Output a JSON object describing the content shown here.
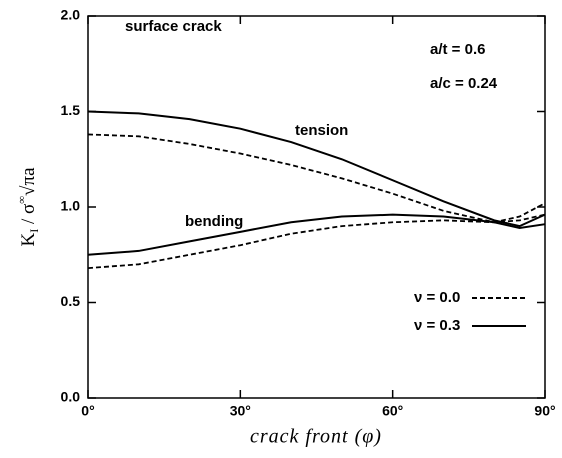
{
  "chart_data": {
    "type": "line",
    "xlabel": "crack front  (φ)",
    "ylabel": {
      "main": "K",
      "sub": "I",
      "rest": " / σ",
      "sup": "∞",
      "root": "√πa"
    },
    "x": [
      0,
      10,
      20,
      30,
      40,
      50,
      60,
      70,
      80,
      85,
      90
    ],
    "series": [
      {
        "legend": 0,
        "annotation": 3,
        "dash": "5 3",
        "color": "#000000",
        "values": [
          1.38,
          1.37,
          1.33,
          1.28,
          1.22,
          1.15,
          1.07,
          0.98,
          0.92,
          0.95,
          1.02
        ]
      },
      {
        "legend": 1,
        "annotation": 3,
        "dash": "none",
        "color": "#000000",
        "values": [
          1.5,
          1.49,
          1.46,
          1.41,
          1.34,
          1.25,
          1.14,
          1.03,
          0.93,
          0.9,
          0.96
        ]
      },
      {
        "legend": 0,
        "annotation": 4,
        "dash": "5 3",
        "color": "#000000",
        "values": [
          0.68,
          0.7,
          0.75,
          0.8,
          0.86,
          0.9,
          0.92,
          0.93,
          0.92,
          0.93,
          0.96
        ]
      },
      {
        "legend": 1,
        "annotation": 4,
        "dash": "none",
        "color": "#000000",
        "values": [
          0.75,
          0.77,
          0.82,
          0.87,
          0.92,
          0.95,
          0.96,
          0.95,
          0.92,
          0.89,
          0.91
        ]
      }
    ],
    "legend": [
      {
        "name": "ν = 0.0",
        "dash": "5 3"
      },
      {
        "name": "ν = 0.3",
        "dash": "none"
      }
    ],
    "annotations": [
      "surface crack",
      "a/t = 0.6",
      "a/c = 0.24",
      "tension",
      "bending"
    ],
    "xlim": [
      0,
      90
    ],
    "xticks": [
      {
        "value": 0,
        "label": "0°"
      },
      {
        "value": 30,
        "label": "30°"
      },
      {
        "value": 60,
        "label": "60°"
      },
      {
        "value": 90,
        "label": "90°"
      }
    ],
    "ylim": [
      0,
      2
    ],
    "yticks": [
      {
        "value": 0,
        "label": "0.0"
      },
      {
        "value": 0.5,
        "label": "0.5"
      },
      {
        "value": 1,
        "label": "1.0"
      },
      {
        "value": 1.5,
        "label": "1.5"
      },
      {
        "value": 2,
        "label": "2.0"
      }
    ],
    "grid": false
  }
}
